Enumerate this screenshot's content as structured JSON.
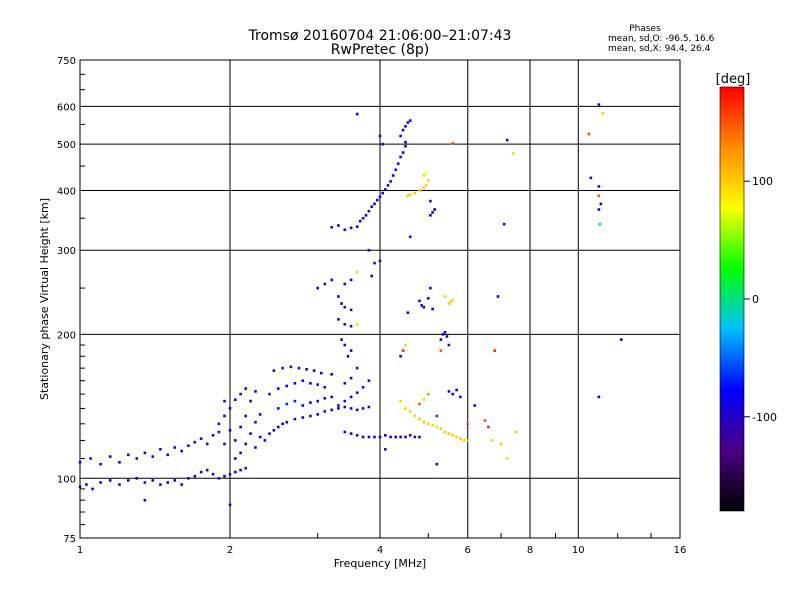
{
  "chart_data": {
    "type": "scatter",
    "title": "Tromsø 20160704 21:06:00–21:07:43",
    "subtitle": "RwPretec (8p)",
    "xlabel": "Frequency [MHz]",
    "ylabel": "Stationary phase Virtual Height [km]",
    "x_scale": "log",
    "y_scale": "log",
    "xlim": [
      1,
      16
    ],
    "ylim": [
      75,
      750
    ],
    "x_ticks": [
      1,
      2,
      4,
      6,
      8,
      10,
      16
    ],
    "y_ticks": [
      75,
      100,
      200,
      300,
      400,
      500,
      600,
      750
    ],
    "grid": true,
    "phase_box": {
      "title": "Phases",
      "line1": "mean, sd,O: -96.5, 16.6",
      "line2": "mean, sd,X:  94.4, 26.4"
    },
    "colorbar": {
      "title": "[deg]",
      "range": [
        -180,
        180
      ],
      "ticks": [
        -100,
        0,
        100
      ],
      "colors": [
        "#000000",
        "#4b0082",
        "#0000ff",
        "#00bfff",
        "#00ff00",
        "#ffff00",
        "#ff8c00",
        "#ff0000"
      ]
    },
    "points": [
      [
        1.0,
        96,
        -100
      ],
      [
        1.03,
        97,
        -100
      ],
      [
        1.06,
        95,
        -105
      ],
      [
        1.1,
        98,
        -100
      ],
      [
        1.15,
        99,
        -100
      ],
      [
        1.2,
        97,
        -102
      ],
      [
        1.25,
        99,
        -100
      ],
      [
        1.3,
        100,
        -98
      ],
      [
        1.35,
        98,
        -100
      ],
      [
        1.4,
        99,
        -100
      ],
      [
        1.45,
        97,
        -100
      ],
      [
        1.5,
        98,
        -103
      ],
      [
        1.55,
        99,
        -100
      ],
      [
        1.6,
        97,
        -100
      ],
      [
        1.65,
        100,
        -100
      ],
      [
        1.7,
        101,
        -98
      ],
      [
        1.75,
        103,
        -100
      ],
      [
        1.8,
        104,
        -100
      ],
      [
        1.85,
        102,
        -100
      ],
      [
        1.9,
        100,
        -100
      ],
      [
        1.95,
        101,
        -100
      ],
      [
        2.0,
        102,
        -100
      ],
      [
        2.05,
        103,
        -100
      ],
      [
        2.1,
        104,
        -100
      ],
      [
        2.15,
        105,
        -100
      ],
      [
        1.0,
        108,
        -100
      ],
      [
        1.05,
        110,
        -100
      ],
      [
        1.1,
        107,
        -100
      ],
      [
        1.15,
        111,
        -100
      ],
      [
        1.2,
        108,
        -100
      ],
      [
        1.25,
        112,
        -100
      ],
      [
        1.3,
        110,
        -100
      ],
      [
        1.35,
        113,
        -100
      ],
      [
        1.4,
        111,
        -100
      ],
      [
        1.45,
        115,
        -100
      ],
      [
        1.5,
        112,
        -100
      ],
      [
        1.55,
        116,
        -100
      ],
      [
        1.6,
        114,
        -100
      ],
      [
        1.65,
        117,
        -100
      ],
      [
        1.7,
        119,
        -100
      ],
      [
        1.75,
        121,
        -100
      ],
      [
        1.8,
        118,
        -100
      ],
      [
        1.85,
        123,
        -100
      ],
      [
        1.9,
        125,
        -100
      ],
      [
        1.35,
        90,
        -100
      ],
      [
        2.0,
        88,
        -100
      ],
      [
        1.9,
        130,
        -100
      ],
      [
        1.95,
        135,
        -100
      ],
      [
        2.0,
        140,
        -100
      ],
      [
        2.05,
        146,
        -100
      ],
      [
        2.1,
        150,
        -100
      ],
      [
        2.15,
        154,
        -100
      ],
      [
        2.0,
        126,
        -100
      ],
      [
        2.05,
        120,
        -100
      ],
      [
        2.1,
        113,
        -100
      ],
      [
        2.15,
        118,
        -100
      ],
      [
        2.2,
        124,
        -100
      ],
      [
        2.25,
        131,
        -100
      ],
      [
        2.3,
        136,
        -100
      ],
      [
        2.2,
        145,
        -100
      ],
      [
        2.25,
        152,
        -100
      ],
      [
        1.95,
        145,
        -100
      ],
      [
        2.05,
        110,
        -100
      ],
      [
        2.1,
        128,
        -100
      ],
      [
        2.15,
        135,
        -100
      ],
      [
        1.95,
        118,
        -100
      ],
      [
        2.25,
        116,
        -100
      ],
      [
        2.3,
        122,
        -100
      ],
      [
        2.35,
        120,
        -100
      ],
      [
        2.4,
        124,
        -100
      ],
      [
        2.45,
        126,
        -100
      ],
      [
        2.5,
        128,
        -98
      ],
      [
        2.55,
        130,
        -100
      ],
      [
        2.6,
        131,
        -100
      ],
      [
        2.7,
        133,
        -100
      ],
      [
        2.8,
        134,
        -100
      ],
      [
        2.9,
        135,
        -100
      ],
      [
        3.0,
        136,
        -100
      ],
      [
        3.1,
        138,
        -100
      ],
      [
        3.2,
        139,
        -100
      ],
      [
        3.3,
        140,
        -100
      ],
      [
        3.4,
        141,
        -100
      ],
      [
        3.5,
        140,
        -100
      ],
      [
        3.6,
        139,
        -100
      ],
      [
        3.7,
        140,
        -100
      ],
      [
        3.8,
        141,
        -100
      ],
      [
        2.4,
        150,
        -100
      ],
      [
        2.5,
        154,
        -90
      ],
      [
        2.6,
        156,
        -80
      ],
      [
        2.7,
        158,
        -75
      ],
      [
        2.8,
        160,
        -85
      ],
      [
        2.9,
        158,
        -95
      ],
      [
        3.0,
        157,
        -100
      ],
      [
        3.1,
        155,
        -100
      ],
      [
        2.45,
        168,
        -100
      ],
      [
        2.55,
        170,
        -100
      ],
      [
        2.65,
        171,
        -100
      ],
      [
        2.75,
        170,
        -100
      ],
      [
        2.85,
        169,
        -100
      ],
      [
        2.95,
        168,
        -100
      ],
      [
        3.05,
        166,
        -100
      ],
      [
        3.2,
        165,
        -100
      ],
      [
        2.5,
        140,
        -70
      ],
      [
        2.6,
        143,
        -65
      ],
      [
        2.7,
        145,
        -70
      ],
      [
        2.8,
        142,
        -80
      ],
      [
        2.9,
        144,
        -90
      ],
      [
        3.0,
        145,
        -100
      ],
      [
        3.1,
        147,
        -100
      ],
      [
        3.2,
        148,
        -100
      ],
      [
        3.3,
        142,
        -100
      ],
      [
        3.4,
        145,
        -100
      ],
      [
        3.5,
        148,
        -100
      ],
      [
        3.6,
        151,
        -100
      ],
      [
        3.7,
        155,
        -100
      ],
      [
        3.8,
        160,
        -100
      ],
      [
        3.4,
        158,
        -100
      ],
      [
        3.5,
        162,
        -100
      ],
      [
        3.6,
        170,
        -100
      ],
      [
        3.45,
        180,
        -100
      ],
      [
        3.4,
        190,
        -100
      ],
      [
        3.35,
        195,
        -100
      ],
      [
        3.5,
        185,
        -100
      ],
      [
        3.7,
        122,
        -100
      ],
      [
        3.8,
        122,
        -100
      ],
      [
        3.9,
        122,
        -100
      ],
      [
        4.0,
        122,
        -100
      ],
      [
        4.1,
        123,
        -100
      ],
      [
        4.2,
        122,
        -100
      ],
      [
        4.3,
        122,
        -100
      ],
      [
        4.4,
        122,
        -100
      ],
      [
        4.5,
        122,
        -100
      ],
      [
        4.6,
        123,
        -100
      ],
      [
        4.7,
        122,
        -100
      ],
      [
        4.8,
        122,
        -100
      ],
      [
        3.5,
        124,
        -100
      ],
      [
        3.6,
        123,
        -100
      ],
      [
        3.4,
        125,
        -100
      ],
      [
        3.2,
        335,
        -100
      ],
      [
        3.3,
        338,
        -100
      ],
      [
        3.4,
        331,
        -100
      ],
      [
        3.5,
        334,
        -100
      ],
      [
        3.6,
        336,
        -100
      ],
      [
        3.65,
        345,
        -100
      ],
      [
        3.7,
        350,
        -100
      ],
      [
        3.75,
        355,
        -100
      ],
      [
        3.8,
        362,
        -100
      ],
      [
        3.85,
        370,
        -100
      ],
      [
        3.9,
        375,
        -100
      ],
      [
        3.95,
        382,
        -100
      ],
      [
        4.0,
        388,
        -100
      ],
      [
        4.05,
        395,
        -100
      ],
      [
        4.1,
        402,
        -100
      ],
      [
        4.15,
        410,
        -100
      ],
      [
        4.2,
        418,
        -100
      ],
      [
        4.25,
        430,
        -100
      ],
      [
        4.3,
        442,
        -100
      ],
      [
        4.35,
        455,
        -100
      ],
      [
        4.4,
        470,
        -100
      ],
      [
        4.45,
        480,
        -100
      ],
      [
        4.5,
        495,
        -100
      ],
      [
        4.4,
        520,
        -100
      ],
      [
        4.45,
        535,
        -100
      ],
      [
        4.5,
        545,
        -100
      ],
      [
        4.55,
        555,
        -100
      ],
      [
        4.6,
        560,
        -100
      ],
      [
        3.6,
        578,
        -100
      ],
      [
        4.0,
        520,
        -100
      ],
      [
        4.05,
        500,
        -100
      ],
      [
        4.5,
        505,
        -100
      ],
      [
        4.55,
        390,
        100
      ],
      [
        4.6,
        392,
        100
      ],
      [
        4.7,
        395,
        100
      ],
      [
        4.8,
        400,
        100
      ],
      [
        4.9,
        405,
        100
      ],
      [
        4.95,
        410,
        100
      ],
      [
        5.0,
        420,
        100
      ],
      [
        4.9,
        430,
        60
      ],
      [
        4.95,
        435,
        80
      ],
      [
        5.05,
        355,
        -100
      ],
      [
        5.1,
        360,
        -100
      ],
      [
        5.15,
        365,
        -100
      ],
      [
        5.05,
        380,
        -100
      ],
      [
        3.0,
        250,
        -100
      ],
      [
        3.1,
        255,
        -100
      ],
      [
        3.2,
        260,
        -100
      ],
      [
        3.4,
        255,
        -100
      ],
      [
        3.5,
        260,
        -100
      ],
      [
        3.6,
        270,
        100
      ],
      [
        3.3,
        240,
        -100
      ],
      [
        3.35,
        232,
        -100
      ],
      [
        3.4,
        228,
        -100
      ],
      [
        3.5,
        225,
        -100
      ],
      [
        3.3,
        215,
        -100
      ],
      [
        3.4,
        210,
        -100
      ],
      [
        3.5,
        208,
        -100
      ],
      [
        3.6,
        210,
        60
      ],
      [
        3.8,
        300,
        -100
      ],
      [
        3.9,
        282,
        -100
      ],
      [
        4.0,
        285,
        -100
      ],
      [
        3.85,
        265,
        -100
      ],
      [
        4.6,
        320,
        -100
      ],
      [
        4.8,
        235,
        -100
      ],
      [
        4.85,
        230,
        -100
      ],
      [
        4.9,
        228,
        -100
      ],
      [
        5.0,
        238,
        -100
      ],
      [
        5.05,
        250,
        -100
      ],
      [
        5.1,
        226,
        -100
      ],
      [
        4.55,
        222,
        -100
      ],
      [
        5.3,
        195,
        -100
      ],
      [
        5.35,
        200,
        -100
      ],
      [
        5.4,
        202,
        -100
      ],
      [
        5.45,
        198,
        -100
      ],
      [
        5.5,
        190,
        -100
      ],
      [
        5.5,
        232,
        100
      ],
      [
        5.55,
        234,
        100
      ],
      [
        5.6,
        236,
        100
      ],
      [
        5.4,
        240,
        100
      ],
      [
        4.4,
        180,
        -100
      ],
      [
        4.45,
        185,
        170
      ],
      [
        4.5,
        190,
        100
      ],
      [
        5.3,
        185,
        150
      ],
      [
        4.4,
        145,
        100
      ],
      [
        4.5,
        140,
        100
      ],
      [
        4.6,
        138,
        100
      ],
      [
        4.7,
        135,
        100
      ],
      [
        4.8,
        133,
        100
      ],
      [
        4.9,
        131,
        100
      ],
      [
        5.0,
        130,
        100
      ],
      [
        5.1,
        129,
        100
      ],
      [
        5.2,
        128,
        60
      ],
      [
        5.3,
        127,
        100
      ],
      [
        5.4,
        125,
        100
      ],
      [
        5.5,
        124,
        100
      ],
      [
        5.6,
        123,
        100
      ],
      [
        5.7,
        122,
        100
      ],
      [
        5.8,
        121,
        100
      ],
      [
        5.9,
        120,
        100
      ],
      [
        6.0,
        120,
        100
      ],
      [
        4.8,
        143,
        150
      ],
      [
        4.9,
        146,
        60
      ],
      [
        5.0,
        150,
        120
      ],
      [
        5.2,
        135,
        -60
      ],
      [
        5.5,
        152,
        -100
      ],
      [
        5.6,
        150,
        -100
      ],
      [
        5.7,
        153,
        -100
      ],
      [
        5.8,
        148,
        -100
      ],
      [
        6.2,
        142,
        -100
      ],
      [
        6.0,
        130,
        150
      ],
      [
        6.5,
        132,
        150
      ],
      [
        6.6,
        128,
        170
      ],
      [
        6.7,
        120,
        100
      ],
      [
        7.0,
        118,
        100
      ],
      [
        7.2,
        110,
        100
      ],
      [
        7.5,
        125,
        100
      ],
      [
        5.2,
        107,
        -100
      ],
      [
        4.1,
        115,
        -100
      ],
      [
        6.9,
        240,
        -100
      ],
      [
        6.8,
        185,
        170
      ],
      [
        7.1,
        340,
        -100
      ],
      [
        7.2,
        510,
        -100
      ],
      [
        7.4,
        478,
        100
      ],
      [
        5.6,
        502,
        150
      ],
      [
        10.5,
        525,
        150
      ],
      [
        11.0,
        605,
        -100
      ],
      [
        11.2,
        580,
        100
      ],
      [
        10.6,
        425,
        -100
      ],
      [
        11.0,
        408,
        -100
      ],
      [
        11.0,
        390,
        150
      ],
      [
        11.1,
        375,
        -100
      ],
      [
        11.0,
        365,
        -100
      ],
      [
        11.05,
        340,
        0
      ],
      [
        12.2,
        195,
        -150
      ],
      [
        11.0,
        148,
        -100
      ]
    ]
  }
}
